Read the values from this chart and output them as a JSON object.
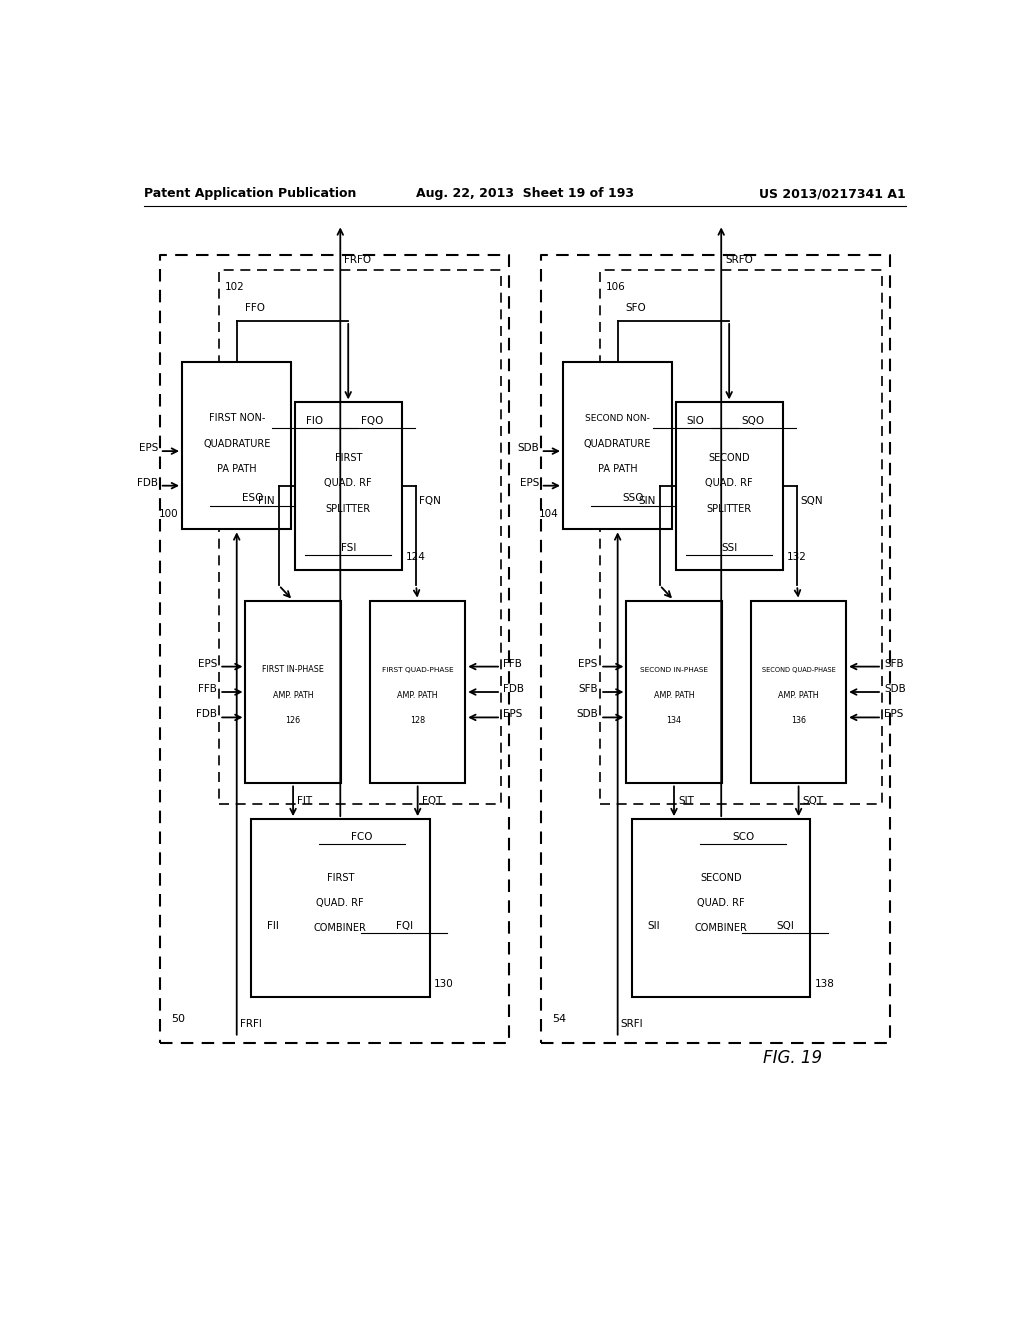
{
  "title_left": "Patent Application Publication",
  "title_center": "Aug. 22, 2013  Sheet 19 of 193",
  "title_right": "US 2013/0217341 A1",
  "fig_label": "FIG. 19",
  "background": "#ffffff",
  "text_color": "#000000",
  "fs_header": 9,
  "fs_block": 7,
  "fs_label": 7.5
}
